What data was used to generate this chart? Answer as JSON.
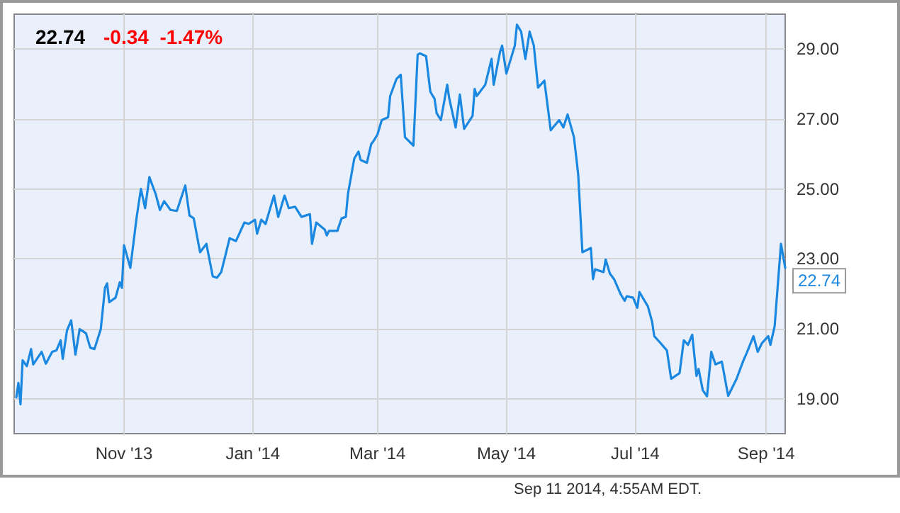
{
  "chart_data": {
    "type": "line",
    "title": "22.74",
    "subtitle": "-0.34  -1.47%",
    "annotations": [
      "Sep 11 2014, 4:55AM EDT."
    ],
    "x": [
      "2013-09-11",
      "2013-09-12",
      "2013-09-13",
      "2013-09-14",
      "2013-09-16",
      "2013-09-18",
      "2013-09-19",
      "2013-09-23",
      "2013-09-25",
      "2013-09-28",
      "2013-09-30",
      "2013-10-02",
      "2013-10-03",
      "2013-10-05",
      "2013-10-07",
      "2013-10-09",
      "2013-10-11",
      "2013-10-14",
      "2013-10-16",
      "2013-10-18",
      "2013-10-21",
      "2013-10-23",
      "2013-10-24",
      "2013-10-25",
      "2013-10-28",
      "2013-10-30",
      "2013-10-31",
      "2013-11-01",
      "2013-11-04",
      "2013-11-07",
      "2013-11-09",
      "2013-11-11",
      "2013-11-13",
      "2013-11-16",
      "2013-11-18",
      "2013-11-20",
      "2013-11-23",
      "2013-11-26",
      "2013-11-30",
      "2013-12-02",
      "2013-12-04",
      "2013-12-07",
      "2013-12-10",
      "2013-12-13",
      "2013-12-15",
      "2013-12-17",
      "2013-12-19",
      "2013-12-21",
      "2013-12-24",
      "2013-12-28",
      "2013-12-30",
      "2014-01-02",
      "2014-01-03",
      "2014-01-05",
      "2014-01-07",
      "2014-01-11",
      "2014-01-13",
      "2014-01-16",
      "2014-01-18",
      "2014-01-21",
      "2014-01-24",
      "2014-01-28",
      "2014-01-29",
      "2014-01-31",
      "2014-02-04",
      "2014-02-05",
      "2014-02-06",
      "2014-02-10",
      "2014-02-12",
      "2014-02-14",
      "2014-02-15",
      "2014-02-18",
      "2014-02-20",
      "2014-02-21",
      "2014-02-24",
      "2014-02-26",
      "2014-02-27",
      "2014-03-01",
      "2014-03-03",
      "2014-03-06",
      "2014-03-07",
      "2014-03-10",
      "2014-03-12",
      "2014-03-14",
      "2014-03-18",
      "2014-03-20",
      "2014-03-21",
      "2014-03-24",
      "2014-03-26",
      "2014-03-28",
      "2014-03-29",
      "2014-03-31",
      "2014-04-03",
      "2014-04-04",
      "2014-04-07",
      "2014-04-09",
      "2014-04-11",
      "2014-04-15",
      "2014-04-16",
      "2014-04-17",
      "2014-04-21",
      "2014-04-24",
      "2014-04-25",
      "2014-04-28",
      "2014-04-29",
      "2014-05-01",
      "2014-05-05",
      "2014-05-06",
      "2014-05-08",
      "2014-05-10",
      "2014-05-12",
      "2014-05-14",
      "2014-05-16",
      "2014-05-19",
      "2014-05-22",
      "2014-05-26",
      "2014-05-28",
      "2014-05-30",
      "2014-06-02",
      "2014-06-04",
      "2014-06-06",
      "2014-06-10",
      "2014-06-11",
      "2014-06-12",
      "2014-06-16",
      "2014-06-17",
      "2014-06-19",
      "2014-06-21",
      "2014-06-24",
      "2014-06-26",
      "2014-06-27",
      "2014-06-30",
      "2014-07-02",
      "2014-07-03",
      "2014-07-07",
      "2014-07-09",
      "2014-07-10",
      "2014-07-13",
      "2014-07-16",
      "2014-07-18",
      "2014-07-22",
      "2014-07-24",
      "2014-07-26",
      "2014-07-28",
      "2014-07-30",
      "2014-07-31",
      "2014-08-02",
      "2014-08-04",
      "2014-08-06",
      "2014-08-08",
      "2014-08-11",
      "2014-08-14",
      "2014-08-18",
      "2014-08-21",
      "2014-08-23",
      "2014-08-26",
      "2014-08-28",
      "2014-08-30",
      "2014-09-02",
      "2014-09-03",
      "2014-09-05",
      "2014-09-08",
      "2014-09-10"
    ],
    "series": [
      {
        "color": "#1a87e0",
        "values": [
          19.04,
          19.45,
          18.84,
          20.1,
          19.93,
          20.42,
          19.98,
          20.34,
          20.0,
          20.34,
          20.38,
          20.67,
          20.14,
          20.95,
          21.24,
          20.26,
          20.99,
          20.87,
          20.46,
          20.42,
          20.99,
          22.17,
          22.3,
          21.76,
          21.89,
          22.33,
          22.17,
          23.39,
          22.74,
          24.2,
          25.0,
          24.45,
          25.34,
          24.85,
          24.4,
          24.65,
          24.4,
          24.37,
          25.1,
          24.24,
          24.16,
          23.19,
          23.43,
          22.5,
          22.46,
          22.62,
          23.1,
          23.59,
          23.51,
          24.04,
          24.0,
          24.12,
          23.72,
          24.12,
          24.0,
          24.81,
          24.2,
          24.81,
          24.45,
          24.49,
          24.2,
          24.28,
          23.43,
          24.04,
          23.84,
          23.67,
          23.8,
          23.8,
          24.16,
          24.2,
          24.85,
          25.87,
          26.07,
          25.83,
          25.75,
          26.28,
          26.36,
          26.56,
          26.97,
          27.05,
          27.66,
          28.15,
          28.27,
          26.48,
          26.24,
          28.84,
          28.88,
          28.8,
          27.78,
          27.58,
          27.17,
          26.97,
          27.98,
          27.58,
          26.76,
          27.7,
          26.72,
          27.09,
          27.86,
          27.66,
          27.98,
          28.72,
          27.98,
          28.92,
          29.1,
          28.3,
          29.1,
          29.7,
          29.5,
          28.72,
          29.5,
          29.1,
          27.9,
          28.1,
          26.68,
          26.97,
          26.76,
          27.13,
          26.48,
          25.42,
          23.19,
          23.31,
          22.42,
          22.7,
          22.62,
          22.98,
          22.58,
          22.42,
          22.0,
          21.8,
          21.93,
          21.89,
          21.6,
          22.05,
          21.64,
          21.2,
          20.79,
          20.59,
          20.38,
          19.57,
          19.73,
          20.67,
          20.54,
          20.83,
          19.65,
          19.85,
          19.24,
          19.07,
          20.34,
          19.98,
          20.06,
          19.08,
          19.57,
          20.06,
          20.34,
          20.79,
          20.34,
          20.59,
          20.79,
          20.54,
          21.07,
          23.43,
          22.74
        ],
        "value_labels": [
          null,
          null,
          null,
          null,
          null,
          null,
          null,
          null,
          null,
          null,
          null,
          null,
          null,
          null,
          null,
          null,
          null,
          null,
          null,
          null,
          null,
          null,
          null,
          null,
          null,
          null,
          null,
          null,
          null,
          null,
          null,
          null,
          null,
          null,
          null,
          null,
          null,
          null,
          null,
          null,
          null,
          null,
          null,
          null,
          null,
          null,
          null,
          null,
          null,
          null,
          null,
          null,
          null,
          null,
          null,
          null,
          null,
          null,
          null,
          null,
          null,
          null,
          null,
          null,
          null,
          null,
          null,
          null,
          null,
          null,
          null,
          null,
          null,
          null,
          null,
          null,
          null,
          null,
          null,
          null,
          null,
          null,
          null,
          null,
          null,
          null,
          null,
          null,
          null,
          null,
          null,
          null,
          null,
          null,
          null,
          null,
          null,
          null,
          null,
          null,
          null,
          null,
          null,
          null,
          null,
          null,
          null,
          null,
          null,
          null,
          null,
          null,
          null,
          null,
          null,
          null,
          null,
          null,
          null,
          null,
          null,
          null,
          null,
          null,
          null,
          null,
          null,
          null,
          null,
          null,
          null,
          null,
          null,
          null,
          null,
          null,
          null,
          null,
          null,
          null,
          null,
          null,
          null,
          null,
          null,
          null,
          null,
          null,
          null,
          null,
          null,
          null,
          null,
          null,
          null,
          null,
          null,
          null,
          null,
          null,
          null,
          null,
          "22.74"
        ]
      }
    ],
    "xlim": [
      "2013-09-10",
      "2014-09-10"
    ],
    "xticks": [
      {
        "value": "2013-11-01",
        "label": "Nov '13"
      },
      {
        "value": "2014-01-01",
        "label": "Jan '14"
      },
      {
        "value": "2014-03-01",
        "label": "Mar '14"
      },
      {
        "value": "2014-05-01",
        "label": "May '14"
      },
      {
        "value": "2014-07-01",
        "label": "Jul '14"
      },
      {
        "value": "2014-09-01",
        "label": "Sep '14"
      }
    ],
    "ylim": [
      18,
      30
    ],
    "yticks": [
      {
        "value": 19,
        "label": "19.00"
      },
      {
        "value": 21,
        "label": "21.00"
      },
      {
        "value": 23,
        "label": "23.00"
      },
      {
        "value": 25,
        "label": "25.00"
      },
      {
        "value": 27,
        "label": "27.00"
      },
      {
        "value": 29,
        "label": "29.00"
      }
    ],
    "grid": true,
    "marker": "none",
    "line_style": "solid"
  }
}
